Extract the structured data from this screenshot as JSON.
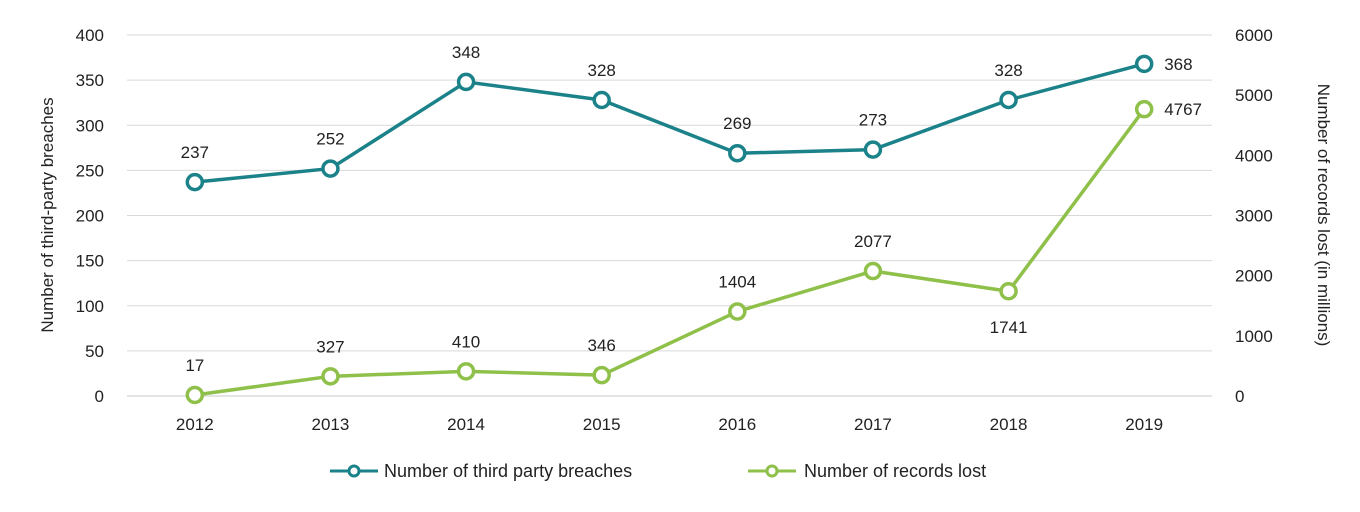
{
  "chart_data": {
    "type": "line",
    "title": "",
    "categories": [
      "2012",
      "2013",
      "2014",
      "2015",
      "2016",
      "2017",
      "2018",
      "2019"
    ],
    "y_left": {
      "label": "Number of third-party breaches",
      "min": 0,
      "max": 400,
      "step": 50,
      "ticks": [
        "0",
        "50",
        "100",
        "150",
        "200",
        "250",
        "300",
        "350",
        "400"
      ]
    },
    "y_right": {
      "label": "Number of records lost (in millions)",
      "min": 0,
      "max": 6000,
      "step": 1000,
      "ticks": [
        "0",
        "1000",
        "2000",
        "3000",
        "4000",
        "5000",
        "6000"
      ]
    },
    "grid": true,
    "legend_position": "bottom",
    "series": [
      {
        "name": "Number of third party breaches",
        "axis": "left",
        "color": "#1b8289",
        "values": [
          237,
          252,
          348,
          328,
          269,
          273,
          328,
          368
        ],
        "labels": [
          "237",
          "252",
          "348",
          "328",
          "269",
          "273",
          "328",
          "368"
        ],
        "label_placement": [
          "above",
          "above",
          "above",
          "above",
          "above",
          "above",
          "above",
          "right"
        ]
      },
      {
        "name": "Number of records lost",
        "axis": "right",
        "color": "#8fc04a",
        "values": [
          17,
          327,
          410,
          346,
          1404,
          2077,
          1741,
          4767
        ],
        "labels": [
          "17",
          "327",
          "410",
          "346",
          "1404",
          "2077",
          "1741",
          "4767"
        ],
        "label_placement": [
          "above",
          "above",
          "above",
          "above",
          "above",
          "above",
          "below",
          "right"
        ]
      }
    ]
  }
}
